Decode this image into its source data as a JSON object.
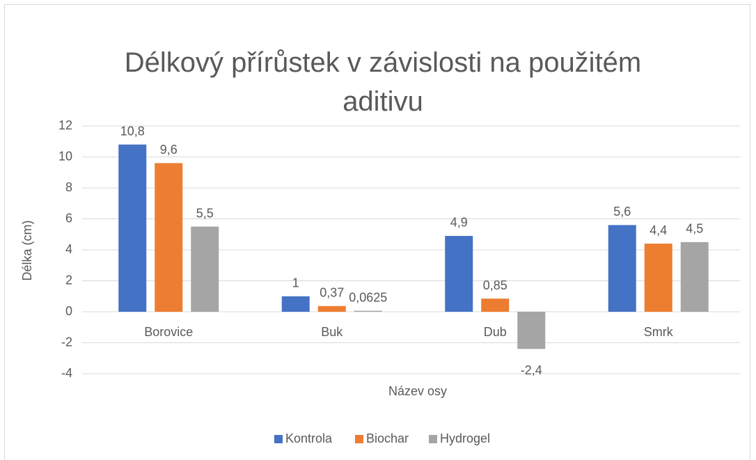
{
  "chart_data": {
    "type": "bar",
    "title": "Délkový přírůstek v závislosti na použitém aditivu",
    "x_label": "Název osy",
    "y_label": "Délka (cm)",
    "categories": [
      "Borovice",
      "Buk",
      "Dub",
      "Smrk"
    ],
    "series": [
      {
        "name": "Kontrola",
        "color": "#4472c4",
        "values": [
          10.8,
          1,
          4.9,
          5.6
        ],
        "value_labels": [
          "10,8",
          "1",
          "4,9",
          "5,6"
        ]
      },
      {
        "name": "Biochar",
        "color": "#ed7d31",
        "values": [
          9.6,
          0.37,
          0.85,
          4.4
        ],
        "value_labels": [
          "9,6",
          "0,37",
          "0,85",
          "4,4"
        ]
      },
      {
        "name": "Hydrogel",
        "color": "#a5a5a5",
        "values": [
          5.5,
          0.0625,
          -2.4,
          4.5
        ],
        "value_labels": [
          "5,5",
          "0,0625",
          "-2,4",
          "4,5"
        ]
      }
    ],
    "ylim": [
      -4,
      12
    ],
    "yticks": [
      -4,
      -2,
      0,
      2,
      4,
      6,
      8,
      10,
      12
    ],
    "grid": true,
    "legend": "bottom"
  }
}
